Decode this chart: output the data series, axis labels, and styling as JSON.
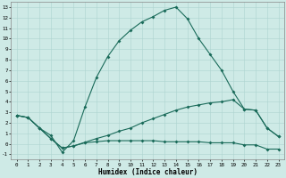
{
  "xlabel": "Humidex (Indice chaleur)",
  "ylabel": "",
  "background_color": "#ceeae6",
  "line_color": "#1a6b5a",
  "grid_color": "#add4cf",
  "xlim": [
    -0.5,
    23.5
  ],
  "ylim": [
    -1.5,
    13.5
  ],
  "xticks": [
    0,
    1,
    2,
    3,
    4,
    5,
    6,
    7,
    8,
    9,
    10,
    11,
    12,
    13,
    14,
    15,
    16,
    17,
    18,
    19,
    20,
    21,
    22,
    23
  ],
  "yticks": [
    -1,
    0,
    1,
    2,
    3,
    4,
    5,
    6,
    7,
    8,
    9,
    10,
    11,
    12,
    13
  ],
  "curve1_x": [
    0,
    1,
    2,
    3,
    4,
    5,
    6,
    7,
    8,
    9,
    10,
    11,
    12,
    13,
    14,
    15,
    16,
    17,
    18,
    19,
    20,
    21,
    22,
    23
  ],
  "curve1_y": [
    2.7,
    2.5,
    1.5,
    0.8,
    -0.8,
    0.3,
    3.5,
    6.3,
    8.3,
    9.8,
    10.8,
    11.6,
    12.1,
    12.7,
    13.0,
    11.9,
    10.0,
    8.5,
    7.0,
    5.0,
    3.3,
    3.2,
    1.5,
    0.7
  ],
  "curve2_x": [
    0,
    1,
    2,
    3,
    4,
    5,
    6,
    7,
    8,
    9,
    10,
    11,
    12,
    13,
    14,
    15,
    16,
    17,
    18,
    19,
    20,
    21,
    22,
    23
  ],
  "curve2_y": [
    2.7,
    2.5,
    1.5,
    0.5,
    -0.4,
    -0.2,
    0.15,
    0.5,
    0.8,
    1.2,
    1.5,
    2.0,
    2.4,
    2.8,
    3.2,
    3.5,
    3.7,
    3.9,
    4.0,
    4.2,
    3.3,
    3.2,
    1.5,
    0.7
  ],
  "curve3_x": [
    0,
    1,
    2,
    3,
    4,
    5,
    6,
    7,
    8,
    9,
    10,
    11,
    12,
    13,
    14,
    15,
    16,
    17,
    18,
    19,
    20,
    21,
    22,
    23
  ],
  "curve3_y": [
    2.7,
    2.5,
    1.5,
    0.5,
    -0.4,
    -0.2,
    0.1,
    0.2,
    0.3,
    0.3,
    0.3,
    0.3,
    0.3,
    0.2,
    0.2,
    0.2,
    0.2,
    0.1,
    0.1,
    0.1,
    -0.1,
    -0.1,
    -0.5,
    -0.5
  ],
  "marker_size": 2.0,
  "line_width": 0.8,
  "tick_fontsize": 4.2,
  "xlabel_fontsize": 5.5
}
